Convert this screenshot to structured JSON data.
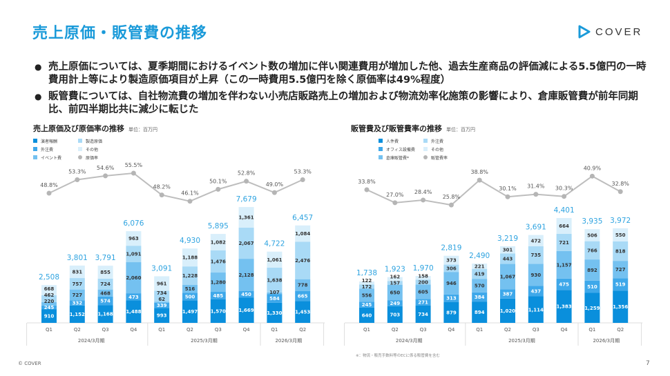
{
  "header": {
    "title": "売上原価・販管費の推移",
    "logo_text": "COVER",
    "brand_color": "#1a9ad9"
  },
  "bullets": [
    "売上原価については、夏季期間におけるイベント数の増加に伴い関連費用が増加した他、過去生産商品の評価減による5.5億円の一時費用計上等により製造原価項目が上昇（この一時費用5.5億円を除く原価率は49%程度）",
    "販管費については、自社物流費の増加を伴わない小売店販路売上の増加および物流効率化施策の影響により、倉庫販管費が前年同期比、前四半期比共に減少に転じた"
  ],
  "footer": {
    "note": "※：物流・販売手数料等のECに係る販管費を含む",
    "copyright": "© COVER",
    "page": "7"
  },
  "chart_data": [
    {
      "type": "bar",
      "stacked": true,
      "title": "売上原価及び原価率の推移",
      "unit": "単位：百万円",
      "categories": [
        "Q1",
        "Q2",
        "Q3",
        "Q4",
        "Q1",
        "Q2",
        "Q3",
        "Q4",
        "Q1",
        "Q2"
      ],
      "periods": [
        {
          "label": "2024/3月期",
          "count": 4
        },
        {
          "label": "2025/3月期",
          "count": 4
        },
        {
          "label": "2026/3月期",
          "count": 2
        }
      ],
      "series": [
        {
          "name": "演者報酬",
          "color": "#0a8fdc",
          "values": [
            910,
            1152,
            1168,
            1488,
            993,
            1497,
            1570,
            1669,
            1330,
            1453
          ]
        },
        {
          "name": "外注費",
          "color": "#3ea8ea",
          "values": [
            245,
            332,
            574,
            473,
            339,
            500,
            485,
            450,
            584,
            665
          ]
        },
        {
          "name": "イベント費",
          "color": "#74c1f0",
          "values": [
            220,
            727,
            468,
            2060,
            62,
            516,
            1280,
            2128,
            107,
            778
          ]
        },
        {
          "name": "製造原価",
          "color": "#a9daf6",
          "values": [
            462,
            757,
            724,
            1091,
            734,
            1228,
            1476,
            2067,
            1638,
            2476
          ]
        },
        {
          "name": "その他",
          "color": "#d9effb",
          "values": [
            668,
            831,
            855,
            963,
            961,
            1188,
            1082,
            1361,
            1061,
            1084
          ]
        }
      ],
      "totals": [
        "2,508",
        "3,801",
        "3,791",
        "6,076",
        "3,091",
        "4,930",
        "5,895",
        "7,679",
        "4,722",
        "6,457"
      ],
      "line": {
        "name": "原価率",
        "color": "#b5b5b5",
        "values": [
          48.8,
          53.3,
          54.6,
          55.5,
          48.2,
          46.1,
          50.1,
          52.8,
          49.0,
          53.3
        ]
      }
    },
    {
      "type": "bar",
      "stacked": true,
      "title": "販管費及び販管費率の推移",
      "unit": "単位：百万円",
      "categories": [
        "Q1",
        "Q2",
        "Q3",
        "Q4",
        "Q1",
        "Q2",
        "Q3",
        "Q4",
        "Q1",
        "Q2"
      ],
      "periods": [
        {
          "label": "2024/3月期",
          "count": 4
        },
        {
          "label": "2025/3月期",
          "count": 4
        },
        {
          "label": "2026/3月期",
          "count": 2
        }
      ],
      "series": [
        {
          "name": "人件費",
          "color": "#0a8fdc",
          "values": [
            640,
            703,
            734,
            879,
            894,
            1020,
            1114,
            1383,
            1259,
            1356
          ]
        },
        {
          "name": "オフィス設備費",
          "color": "#3ea8ea",
          "values": [
            245,
            249,
            271,
            313,
            384,
            387,
            437,
            475,
            510,
            519
          ]
        },
        {
          "name": "倉庫販管費*",
          "color": "#74c1f0",
          "values": [
            556,
            650,
            605,
            946,
            570,
            1067,
            930,
            1157,
            892,
            727
          ]
        },
        {
          "name": "外注費",
          "color": "#a9daf6",
          "values": [
            172,
            157,
            200,
            306,
            419,
            443,
            735,
            721,
            766,
            818
          ]
        },
        {
          "name": "その他",
          "color": "#d9effb",
          "values": [
            122,
            162,
            158,
            373,
            221,
            301,
            472,
            664,
            506,
            550
          ]
        }
      ],
      "totals": [
        "1,738",
        "1,923",
        "1,970",
        "2,819",
        "2,490",
        "3,219",
        "3,691",
        "4,401",
        "3,935",
        "3,972"
      ],
      "line": {
        "name": "販管費率",
        "color": "#b5b5b5",
        "values": [
          33.8,
          27.0,
          28.4,
          25.8,
          38.8,
          30.1,
          31.4,
          30.3,
          40.9,
          32.8
        ]
      }
    }
  ]
}
